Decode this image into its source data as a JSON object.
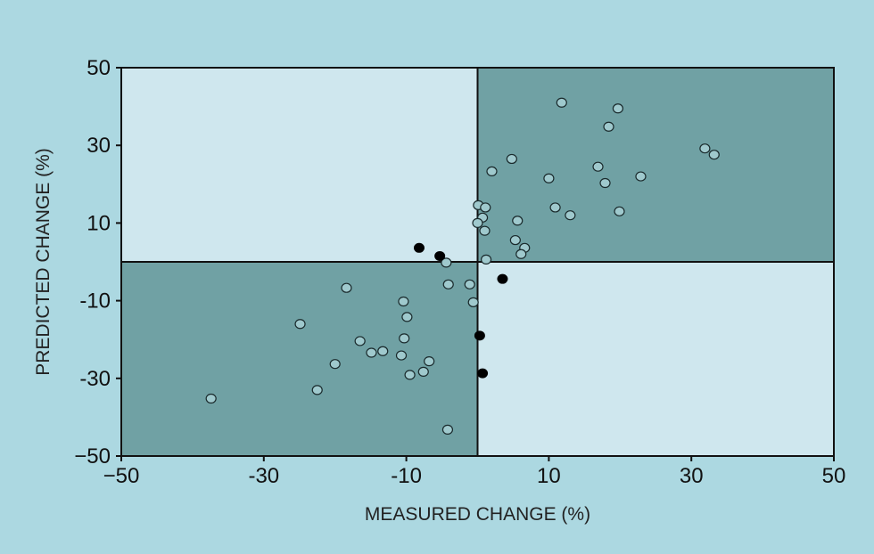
{
  "colors": {
    "background": "#acd8e1",
    "quadrant_light": "#cfe7ee",
    "quadrant_dark": "#70a1a4",
    "axis": "#111111",
    "point_open_fill": "#9fc9cd",
    "point_open_stroke": "#1a2a2c",
    "point_filled": "#000000"
  },
  "chart_data": {
    "type": "scatter",
    "title": "",
    "xlabel": "MEASURED CHANGE (%)",
    "ylabel": "PREDICTED CHANGE (%)",
    "xlim": [
      -50,
      50
    ],
    "ylim": [
      -50,
      50
    ],
    "x_ticks": [
      -50,
      -30,
      -10,
      10,
      30,
      50
    ],
    "y_ticks": [
      -50,
      -30,
      -10,
      10,
      30,
      50
    ],
    "x_tick_labels": [
      "−50",
      "-30",
      "-10",
      "10",
      "30",
      "50"
    ],
    "y_tick_labels": [
      "−50",
      "-30",
      "-10",
      "10",
      "30",
      "50"
    ],
    "grid": false,
    "quadrants": {
      "top_left": "light",
      "top_right": "dark",
      "bottom_left": "dark",
      "bottom_right": "light"
    },
    "series": [
      {
        "marker": "open-circle",
        "points": [
          [
            11.8,
            41
          ],
          [
            19.7,
            39.5
          ],
          [
            18.4,
            34.8
          ],
          [
            4.8,
            26.5
          ],
          [
            2,
            23.3
          ],
          [
            16.9,
            24.5
          ],
          [
            10,
            21.5
          ],
          [
            22.9,
            22
          ],
          [
            17.9,
            20.3
          ],
          [
            31.9,
            29.2
          ],
          [
            33.2,
            27.6
          ],
          [
            0.1,
            14.6
          ],
          [
            1.1,
            14
          ],
          [
            10.9,
            14
          ],
          [
            13,
            12
          ],
          [
            19.9,
            13
          ],
          [
            0.7,
            11.4
          ],
          [
            5.6,
            10.6
          ],
          [
            0,
            10
          ],
          [
            1,
            8
          ],
          [
            5.3,
            5.6
          ],
          [
            6.6,
            3.6
          ],
          [
            6.1,
            2
          ],
          [
            1.2,
            0.6
          ],
          [
            -4.4,
            -0.2
          ],
          [
            -18.4,
            -6.7
          ],
          [
            -4.1,
            -5.8
          ],
          [
            -1.1,
            -5.8
          ],
          [
            -10.4,
            -10.2
          ],
          [
            -0.6,
            -10.4
          ],
          [
            -24.9,
            -16
          ],
          [
            -9.9,
            -14.2
          ],
          [
            -10.3,
            -19.7
          ],
          [
            -16.5,
            -20.4
          ],
          [
            -14.9,
            -23.4
          ],
          [
            -13.3,
            -23
          ],
          [
            -10.7,
            -24.1
          ],
          [
            -20,
            -26.3
          ],
          [
            -6.8,
            -25.6
          ],
          [
            -7.6,
            -28.3
          ],
          [
            -9.5,
            -29.1
          ],
          [
            -22.5,
            -33
          ],
          [
            -37.4,
            -35.2
          ],
          [
            -4.2,
            -43.2
          ]
        ]
      },
      {
        "marker": "filled-circle",
        "points": [
          [
            -8.2,
            3.6
          ],
          [
            -5.3,
            1.5
          ],
          [
            3.5,
            -4.4
          ],
          [
            0.3,
            -19
          ],
          [
            0.7,
            -28.7
          ]
        ]
      }
    ]
  }
}
